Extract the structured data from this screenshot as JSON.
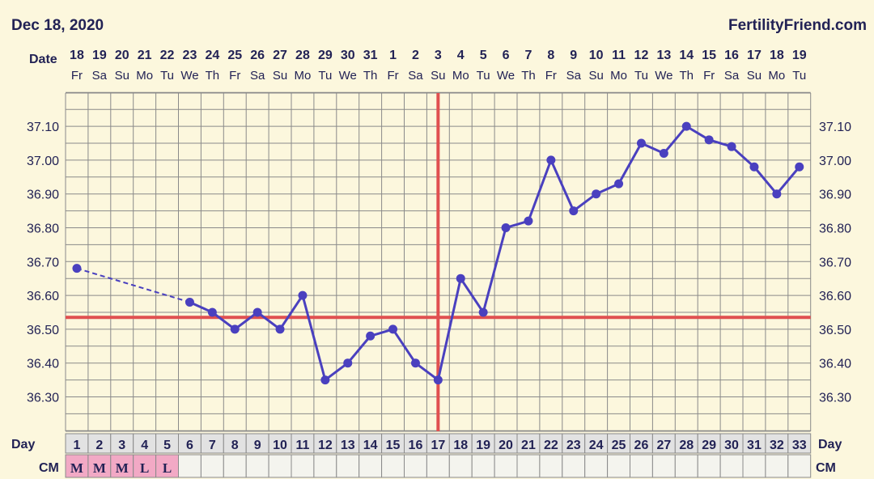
{
  "header": {
    "date": "Dec 18, 2020",
    "brand": "FertilityFriend.com"
  },
  "row_labels": {
    "date": "Date",
    "day": "Day",
    "cm": "CM"
  },
  "colors": {
    "background": "#fcf7dd",
    "grid": "#8a8a8a",
    "line": "#4a40bf",
    "coverline": "#e05050",
    "text": "#222255",
    "cm_cell": "#f2a9c5",
    "cm_empty": "#f4f4ee",
    "day_cell": "#e2e2e2"
  },
  "chart_data": {
    "type": "line",
    "ylim": [
      36.2,
      37.2
    ],
    "y_ticks": [
      "36.30",
      "36.40",
      "36.50",
      "36.60",
      "36.70",
      "36.80",
      "36.90",
      "37.00",
      "37.10"
    ],
    "dates": [
      "18",
      "19",
      "20",
      "21",
      "22",
      "23",
      "24",
      "25",
      "26",
      "27",
      "28",
      "29",
      "30",
      "31",
      "1",
      "2",
      "3",
      "4",
      "5",
      "6",
      "7",
      "8",
      "9",
      "10",
      "11",
      "12",
      "13",
      "14",
      "15",
      "16",
      "17",
      "18",
      "19"
    ],
    "weekdays": [
      "Fr",
      "Sa",
      "Su",
      "Mo",
      "Tu",
      "We",
      "Th",
      "Fr",
      "Sa",
      "Su",
      "Mo",
      "Tu",
      "We",
      "Th",
      "Fr",
      "Sa",
      "Su",
      "Mo",
      "Tu",
      "We",
      "Th",
      "Fr",
      "Sa",
      "Su",
      "Mo",
      "Tu",
      "We",
      "Th",
      "Fr",
      "Sa",
      "Su",
      "Mo",
      "Tu"
    ],
    "days": [
      "1",
      "2",
      "3",
      "4",
      "5",
      "6",
      "7",
      "8",
      "9",
      "10",
      "11",
      "12",
      "13",
      "14",
      "15",
      "16",
      "17",
      "18",
      "19",
      "20",
      "21",
      "22",
      "23",
      "24",
      "25",
      "26",
      "27",
      "28",
      "29",
      "30",
      "31",
      "32",
      "33"
    ],
    "temperatures": [
      36.68,
      null,
      null,
      null,
      null,
      36.58,
      36.55,
      36.5,
      36.55,
      36.5,
      36.6,
      36.35,
      36.4,
      36.48,
      36.5,
      36.4,
      36.35,
      36.65,
      36.55,
      36.8,
      36.82,
      37.0,
      36.85,
      36.9,
      36.93,
      37.05,
      37.02,
      37.1,
      37.06,
      37.04,
      36.98,
      36.9,
      36.98
    ],
    "cm": [
      "M",
      "M",
      "M",
      "L",
      "L",
      "",
      "",
      "",
      "",
      "",
      "",
      "",
      "",
      "",
      "",
      "",
      "",
      "",
      "",
      "",
      "",
      "",
      "",
      "",
      "",
      "",
      "",
      "",
      "",
      "",
      "",
      "",
      ""
    ],
    "coverline": 36.535,
    "ovulation_day": 17
  }
}
